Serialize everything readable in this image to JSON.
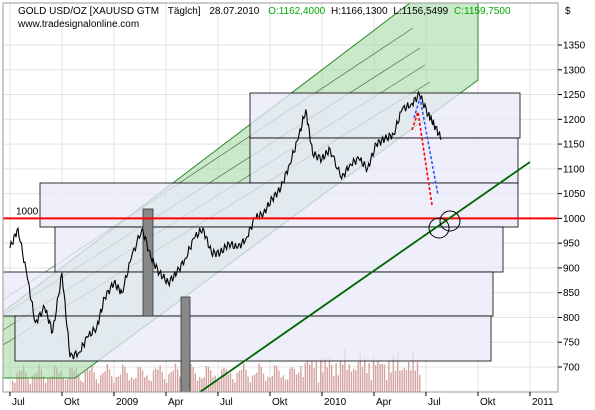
{
  "header": {
    "symbol": "GOLD USD/OZ [XAUUSD GTM",
    "period": "Täglch]",
    "date": "28.07.2010",
    "open": "O:1162,4000",
    "high": "H:1166,1300",
    "low": "L:1156,5499",
    "close": "C:1159,7500",
    "watermark": "www.tradesignalonline.com",
    "currency": "$"
  },
  "colors": {
    "price": "#000000",
    "open": "#00aa00",
    "close": "#00aa00",
    "level_line": "#ff0000",
    "trend_line": "#006600",
    "channel_fill": "#9fd69f",
    "channel_edge": "#2e8b2e",
    "box_fill": "#e9e9fb",
    "box_edge": "#000000",
    "volume": "#d6a3a3",
    "gray_bar": "#888888",
    "forecast_red": "#ff0000",
    "forecast_blue": "#3355ff"
  },
  "chart_data": {
    "type": "line",
    "title": "GOLD USD/OZ [XAUUSD GTM Täglch] 28.07.2010",
    "xlabel": "",
    "ylabel": "$",
    "ylim": [
      670,
      1420
    ],
    "yticks": [
      700,
      750,
      800,
      850,
      900,
      950,
      1000,
      1050,
      1100,
      1150,
      1200,
      1250,
      1300,
      1350
    ],
    "x_tick_labels": [
      "Jul",
      "Okt",
      "2009",
      "Apr",
      "Jul",
      "Okt",
      "2010",
      "Apr",
      "Jul",
      "Okt",
      "2011"
    ],
    "x_tick_dates": [
      "2008-07-01",
      "2008-10-01",
      "2009-01-01",
      "2009-04-01",
      "2009-07-01",
      "2009-10-01",
      "2010-01-01",
      "2010-04-01",
      "2010-07-01",
      "2010-10-01",
      "2011-01-01"
    ],
    "grid": true,
    "annotations": [
      {
        "type": "hline",
        "value": 1000,
        "label": "1000"
      }
    ],
    "series": [
      {
        "x": [
          "2008-07-01",
          "2008-07-15",
          "2008-08-01",
          "2008-08-15",
          "2008-09-01",
          "2008-09-15",
          "2008-10-01",
          "2008-10-15",
          "2008-11-01",
          "2008-11-15",
          "2008-12-01",
          "2008-12-15",
          "2009-01-01",
          "2009-01-15",
          "2009-02-01",
          "2009-02-20",
          "2009-03-05",
          "2009-03-20",
          "2009-04-05",
          "2009-04-20",
          "2009-05-05",
          "2009-05-20",
          "2009-06-05",
          "2009-06-20",
          "2009-07-05",
          "2009-07-20",
          "2009-08-05",
          "2009-08-20",
          "2009-09-05",
          "2009-09-20",
          "2009-10-05",
          "2009-10-20",
          "2009-11-05",
          "2009-11-20",
          "2009-12-03",
          "2009-12-15",
          "2010-01-01",
          "2010-01-15",
          "2010-02-05",
          "2010-02-20",
          "2010-03-05",
          "2010-03-20",
          "2010-04-05",
          "2010-04-20",
          "2010-05-05",
          "2010-05-20",
          "2010-06-05",
          "2010-06-20",
          "2010-07-05",
          "2010-07-15",
          "2010-07-28"
        ],
        "values": [
          940,
          980,
          880,
          790,
          820,
          770,
          890,
          720,
          730,
          760,
          780,
          840,
          870,
          850,
          920,
          980,
          920,
          890,
          870,
          890,
          920,
          960,
          980,
          930,
          930,
          950,
          940,
          960,
          1000,
          1010,
          1040,
          1060,
          1110,
          1160,
          1220,
          1130,
          1120,
          1140,
          1080,
          1110,
          1120,
          1100,
          1150,
          1160,
          1170,
          1220,
          1230,
          1250,
          1210,
          1190,
          1160
        ]
      }
    ]
  }
}
